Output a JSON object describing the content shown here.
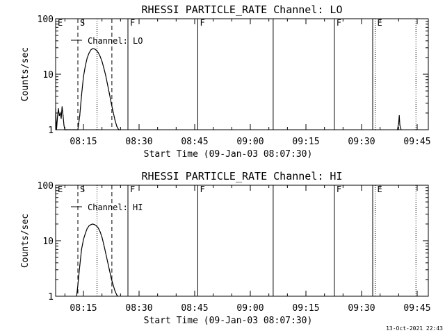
{
  "timestamp": "13-Oct-2021 22:43",
  "chart_data": [
    {
      "type": "line",
      "title": "RHESSI PARTICLE_RATE Channel: LO",
      "xlabel": "Start Time (09-Jan-03 08:07:30)",
      "ylabel": "Counts/sec",
      "yscale": "log",
      "ylim": [
        1,
        100
      ],
      "xlim": [
        "08:07:30",
        "09:48:00"
      ],
      "x_ticks": [
        "08:15",
        "08:30",
        "08:45",
        "09:00",
        "09:15",
        "09:30",
        "09:45"
      ],
      "y_ticks": [
        "1",
        "10",
        "100"
      ],
      "legend": "Channel: LO",
      "markers": [
        {
          "label": "E",
          "time": "08:07:30",
          "style": "none"
        },
        {
          "label": "S",
          "time": "08:13:30",
          "style": "dashed"
        },
        {
          "label": "",
          "time": "08:22:40",
          "style": "dashed"
        },
        {
          "label": "",
          "time": "08:18:40",
          "style": "dotted"
        },
        {
          "label": "F",
          "time": "08:27:00",
          "style": "solid"
        },
        {
          "label": "F",
          "time": "08:45:50",
          "style": "solid"
        },
        {
          "label": "",
          "time": "09:06:10",
          "style": "solid"
        },
        {
          "label": "F",
          "time": "09:22:40",
          "style": "solid"
        },
        {
          "label": "",
          "time": "09:33:00",
          "style": "solid"
        },
        {
          "label": "E",
          "time": "09:33:40",
          "style": "dotted"
        },
        {
          "label": "",
          "time": "09:44:40",
          "style": "dotted"
        }
      ],
      "series": [
        {
          "x": [
            "08:07:30",
            "08:07:45",
            "08:08:00",
            "08:08:15",
            "08:08:30",
            "08:08:45",
            "08:09:00",
            "08:09:15",
            "08:09:30",
            "08:09:45",
            "08:10:00",
            "08:10:15",
            "08:10:30",
            "08:13:30",
            "08:14:00",
            "08:14:30",
            "08:15:00",
            "08:15:30",
            "08:16:00",
            "08:16:30",
            "08:17:00",
            "08:17:30",
            "08:18:00",
            "08:18:30",
            "08:19:00",
            "08:19:30",
            "08:20:00",
            "08:20:30",
            "08:21:00",
            "08:21:30",
            "08:22:00",
            "08:22:30",
            "08:23:00",
            "08:23:30",
            "08:24:00",
            "08:24:30",
            "08:25:00",
            "09:39:40",
            "09:40:00",
            "09:40:10",
            "09:40:20",
            "09:40:40"
          ],
          "values": [
            2.4,
            1.0,
            1.7,
            2.4,
            1.8,
            2.0,
            1.6,
            2.6,
            1.8,
            1.2,
            1.0,
            1.0,
            1.0,
            1.0,
            1.8,
            4.2,
            9.0,
            14.0,
            19.5,
            24.0,
            27.5,
            29.0,
            28.5,
            27.0,
            24.5,
            21.0,
            17.0,
            13.0,
            9.5,
            6.5,
            4.5,
            3.0,
            2.1,
            1.5,
            1.15,
            1.0,
            1.0,
            1.0,
            1.3,
            1.8,
            1.2,
            1.0
          ]
        }
      ]
    },
    {
      "type": "line",
      "title": "RHESSI PARTICLE_RATE Channel: HI",
      "xlabel": "Start Time (09-Jan-03 08:07:30)",
      "ylabel": "Counts/sec",
      "yscale": "log",
      "ylim": [
        1,
        100
      ],
      "xlim": [
        "08:07:30",
        "09:48:00"
      ],
      "x_ticks": [
        "08:15",
        "08:30",
        "08:45",
        "09:00",
        "09:15",
        "09:30",
        "09:45"
      ],
      "y_ticks": [
        "1",
        "10",
        "100"
      ],
      "legend": "Channel: HI",
      "markers": [
        {
          "label": "E",
          "time": "08:07:30",
          "style": "none"
        },
        {
          "label": "S",
          "time": "08:13:30",
          "style": "dashed"
        },
        {
          "label": "",
          "time": "08:22:40",
          "style": "dashed"
        },
        {
          "label": "",
          "time": "08:18:40",
          "style": "dotted"
        },
        {
          "label": "F",
          "time": "08:27:00",
          "style": "solid"
        },
        {
          "label": "F",
          "time": "08:45:50",
          "style": "solid"
        },
        {
          "label": "",
          "time": "09:06:10",
          "style": "solid"
        },
        {
          "label": "F",
          "time": "09:22:40",
          "style": "solid"
        },
        {
          "label": "",
          "time": "09:33:00",
          "style": "solid"
        },
        {
          "label": "E",
          "time": "09:33:40",
          "style": "dotted"
        },
        {
          "label": "",
          "time": "09:44:40",
          "style": "dotted"
        }
      ],
      "series": [
        {
          "x": [
            "08:13:10",
            "08:13:30",
            "08:14:00",
            "08:14:30",
            "08:15:00",
            "08:15:30",
            "08:16:00",
            "08:16:30",
            "08:17:00",
            "08:17:30",
            "08:18:00",
            "08:18:30",
            "08:19:00",
            "08:19:30",
            "08:20:00",
            "08:20:30",
            "08:21:00",
            "08:21:30",
            "08:22:00",
            "08:22:30",
            "08:23:00",
            "08:23:30",
            "08:24:00",
            "08:24:20"
          ],
          "values": [
            1.0,
            1.6,
            3.5,
            7.0,
            10.5,
            13.5,
            16.5,
            18.5,
            19.5,
            20.0,
            19.5,
            18.5,
            17.0,
            14.5,
            11.5,
            8.5,
            6.0,
            4.2,
            3.0,
            2.1,
            1.6,
            1.25,
            1.05,
            1.0
          ]
        }
      ]
    }
  ]
}
